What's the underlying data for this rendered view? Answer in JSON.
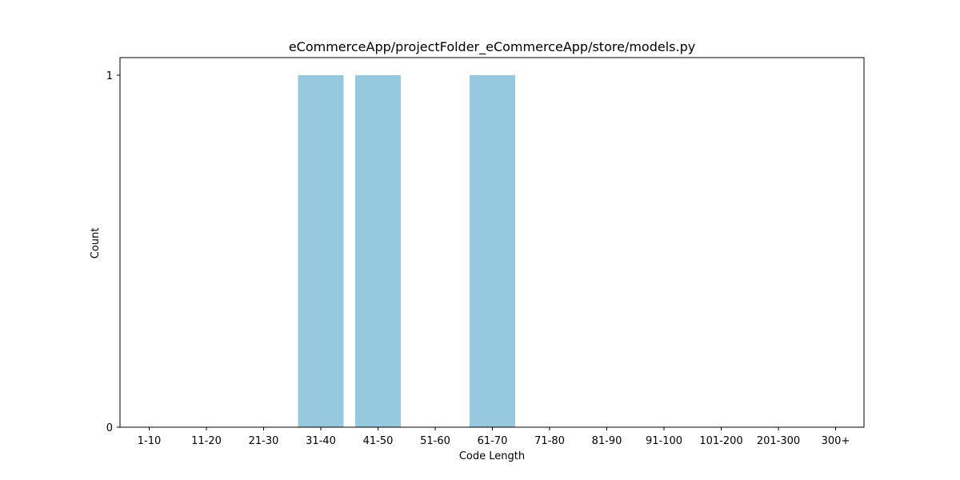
{
  "chart_data": {
    "type": "bar",
    "title": "eCommerceApp/projectFolder_eCommerceApp/store/models.py",
    "xlabel": "Code Length",
    "ylabel": "Count",
    "categories": [
      "1-10",
      "11-20",
      "21-30",
      "31-40",
      "41-50",
      "51-60",
      "61-70",
      "71-80",
      "81-90",
      "91-100",
      "101-200",
      "201-300",
      "300+"
    ],
    "values": [
      0,
      0,
      0,
      1,
      1,
      0,
      1,
      0,
      0,
      0,
      0,
      0,
      0
    ],
    "ylim": [
      0,
      1.05
    ],
    "yticks": [
      "0",
      "1"
    ],
    "bar_color": "#96c9de",
    "grid": false,
    "legend": "none"
  }
}
